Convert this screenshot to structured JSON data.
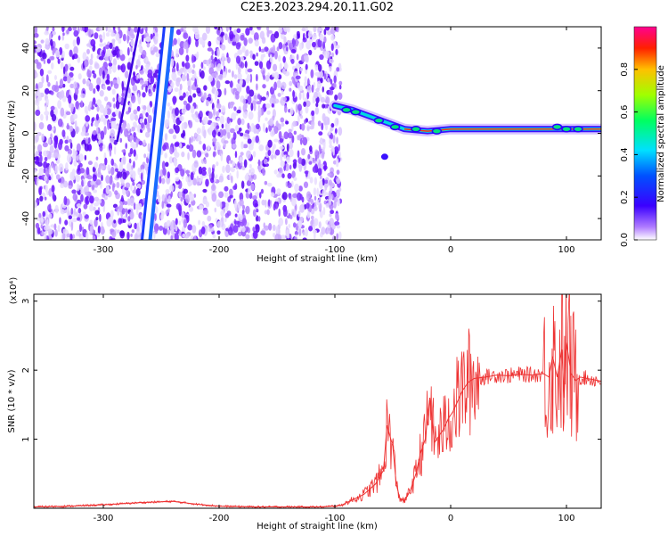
{
  "title": "C2E3.2023.294.20.11.G02",
  "chart_data": [
    {
      "type": "heatmap",
      "xlabel": "Height of straight line (km)",
      "ylabel": "Frequency (Hz)",
      "xlim": [
        -360,
        130
      ],
      "ylim": [
        -50,
        50
      ],
      "xticks": [
        -300,
        -200,
        -100,
        0,
        100
      ],
      "yticks": [
        -40,
        -20,
        0,
        20,
        40
      ],
      "colorbar": {
        "label": "Normalized spectral amplitude",
        "range": [
          0,
          1
        ],
        "ticks": [
          "0.0",
          "0.2",
          "0.4",
          "0.6",
          "0.8"
        ],
        "colormap": "rainbow (white-violet-blue-cyan-green-yellow-red-magenta)"
      },
      "features": {
        "noise_region_x": [
          -360,
          -95
        ],
        "gap_band_center": {
          "x": [
            -265,
            -245
          ],
          "freq": [
            -50,
            50
          ]
        },
        "signal_track": [
          {
            "x": -100,
            "freq": 13
          },
          {
            "x": -85,
            "freq": 11
          },
          {
            "x": -70,
            "freq": 8
          },
          {
            "x": -55,
            "freq": 5
          },
          {
            "x": -40,
            "freq": 2
          },
          {
            "x": -20,
            "freq": 1
          },
          {
            "x": 0,
            "freq": 2
          },
          {
            "x": 50,
            "freq": 2
          },
          {
            "x": 100,
            "freq": 2
          },
          {
            "x": 130,
            "freq": 2
          }
        ]
      }
    },
    {
      "type": "line",
      "xlabel": "Height of straight line (km)",
      "ylabel": "SNR (10 * v/v)",
      "y_multiplier": "(x10⁴)",
      "xlim": [
        -360,
        130
      ],
      "ylim": [
        0,
        3.1
      ],
      "xticks": [
        -300,
        -200,
        -100,
        0,
        100
      ],
      "yticks": [
        1,
        2,
        3
      ],
      "series": [
        {
          "color": "#ee3333",
          "x": [
            -360,
            -330,
            -300,
            -270,
            -240,
            -220,
            -200,
            -170,
            -140,
            -110,
            -95,
            -85,
            -75,
            -65,
            -58,
            -55,
            -50,
            -47,
            -44,
            -40,
            -35,
            -30,
            -26,
            -22,
            -18,
            -14,
            -10,
            -6,
            -2,
            2,
            6,
            10,
            15,
            20,
            30,
            40,
            50,
            60,
            70,
            80,
            85,
            88,
            92,
            96,
            98,
            100,
            104,
            108,
            112,
            118,
            124,
            130
          ],
          "y": [
            0.02,
            0.03,
            0.05,
            0.08,
            0.1,
            0.06,
            0.03,
            0.02,
            0.02,
            0.02,
            0.04,
            0.12,
            0.2,
            0.35,
            0.55,
            1.2,
            0.9,
            0.35,
            0.15,
            0.1,
            0.25,
            0.5,
            0.8,
            1.0,
            1.6,
            0.95,
            1.05,
            1.15,
            1.3,
            1.4,
            1.55,
            1.7,
            1.82,
            1.88,
            1.9,
            1.93,
            1.92,
            1.94,
            1.93,
            1.95,
            1.9,
            2.2,
            1.9,
            2.3,
            1.6,
            2.4,
            1.95,
            1.85,
            1.9,
            1.88,
            1.86,
            1.84
          ]
        }
      ]
    }
  ]
}
